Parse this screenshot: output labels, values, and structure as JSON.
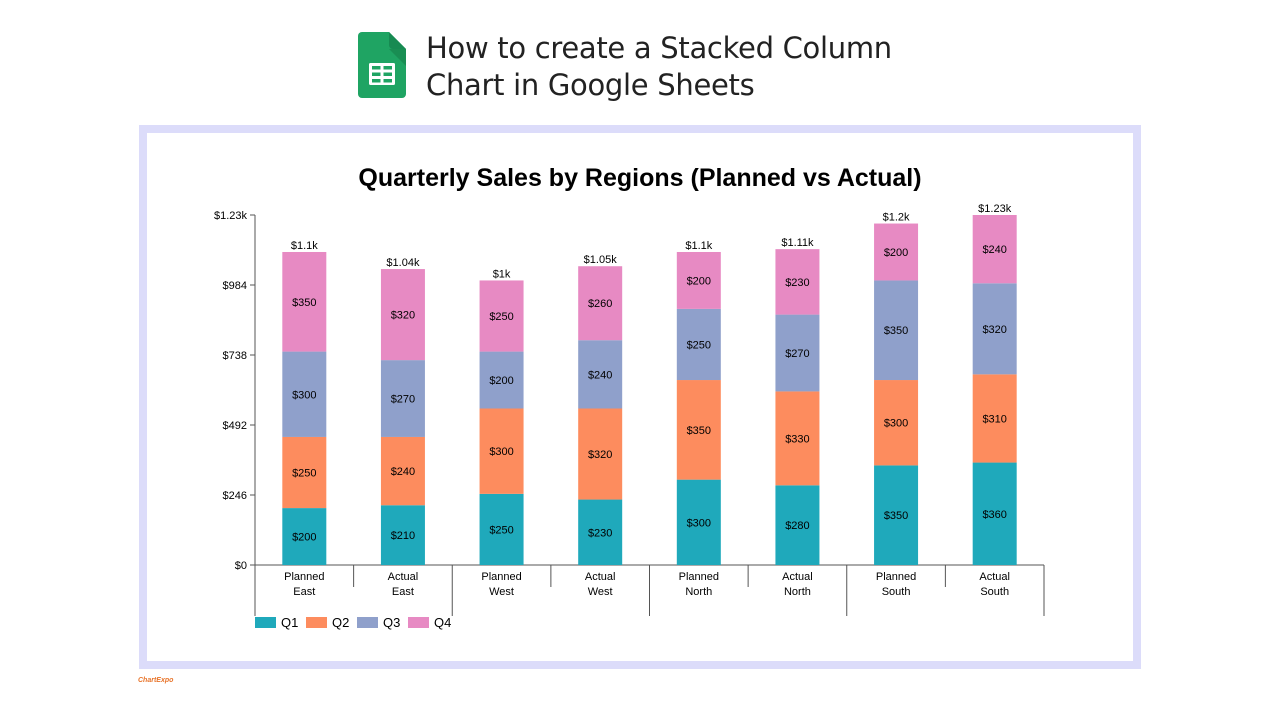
{
  "header": {
    "title_line1": "How to create a Stacked Column",
    "title_line2": "Chart in Google Sheets",
    "logo_icon": "google-sheets-icon",
    "logo_color": "#1fa463"
  },
  "brand": {
    "text": "ChartExpo"
  },
  "chart_data": {
    "type": "bar",
    "stacked": true,
    "title": "Quarterly Sales by Regions (Planned vs Actual)",
    "categories": [
      [
        "Planned",
        "East"
      ],
      [
        "Actual",
        "East"
      ],
      [
        "Planned",
        "West"
      ],
      [
        "Actual",
        "West"
      ],
      [
        "Planned",
        "North"
      ],
      [
        "Actual",
        "North"
      ],
      [
        "Planned",
        "South"
      ],
      [
        "Actual",
        "South"
      ]
    ],
    "series": [
      {
        "name": "Q1",
        "color": "#1fa9bb",
        "values": [
          200,
          210,
          250,
          230,
          300,
          280,
          350,
          360
        ],
        "labels": [
          "$200",
          "$210",
          "$250",
          "$230",
          "$300",
          "$280",
          "$350",
          "$360"
        ]
      },
      {
        "name": "Q2",
        "color": "#fd8c5e",
        "values": [
          250,
          240,
          300,
          320,
          350,
          330,
          300,
          310
        ],
        "labels": [
          "$250",
          "$240",
          "$300",
          "$320",
          "$350",
          "$330",
          "$300",
          "$310"
        ]
      },
      {
        "name": "Q3",
        "color": "#8fa0cb",
        "values": [
          300,
          270,
          200,
          240,
          250,
          270,
          350,
          320
        ],
        "labels": [
          "$300",
          "$270",
          "$200",
          "$240",
          "$250",
          "$270",
          "$350",
          "$320"
        ]
      },
      {
        "name": "Q4",
        "color": "#e78ac3",
        "values": [
          350,
          320,
          250,
          260,
          200,
          230,
          200,
          240
        ],
        "labels": [
          "$350",
          "$320",
          "$250",
          "$260",
          "$200",
          "$230",
          "$200",
          "$240"
        ]
      }
    ],
    "totals": [
      "$1.1k",
      "$1.04k",
      "$1k",
      "$1.05k",
      "$1.1k",
      "$1.11k",
      "$1.2k",
      "$1.23k"
    ],
    "yticks": [
      0,
      246,
      492,
      738,
      984,
      1230
    ],
    "ytick_labels": [
      "$0",
      "$246",
      "$492",
      "$738",
      "$984",
      "$1.23k"
    ],
    "ylim": [
      0,
      1230
    ],
    "legend_position": "bottom-left",
    "grid": false
  }
}
